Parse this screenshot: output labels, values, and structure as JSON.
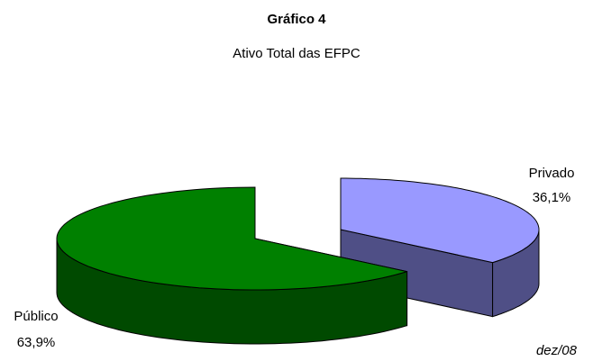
{
  "chart_data": {
    "type": "pie",
    "title": "Gráfico 4",
    "subtitle": "Ativo Total das EFPC",
    "categories": [
      "Privado",
      "Público"
    ],
    "values": [
      36.1,
      63.9
    ],
    "value_labels": [
      "36,1%",
      "63,9%"
    ],
    "colors": [
      "#9999ff",
      "#008000"
    ],
    "side_colors": [
      "#4f4f86",
      "#004a00"
    ],
    "annotation": "dez/08"
  }
}
